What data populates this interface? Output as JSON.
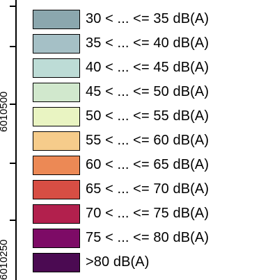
{
  "map": {
    "axis": {
      "labels": [
        "6010500",
        "6010250"
      ]
    },
    "legend": {
      "items": [
        {
          "label": "30 < ... <= 35 dB(A)",
          "color": "#8ba7ae"
        },
        {
          "label": "35 < ... <= 40 dB(A)",
          "color": "#a5c0c6"
        },
        {
          "label": "40 < ... <= 45 dB(A)",
          "color": "#bddcd6"
        },
        {
          "label": "45 < ... <= 50 dB(A)",
          "color": "#d1e8cd"
        },
        {
          "label": "50 < ... <= 55 dB(A)",
          "color": "#e9f4c2"
        },
        {
          "label": "55 < ... <= 60 dB(A)",
          "color": "#f6cc8b"
        },
        {
          "label": "60 < ... <= 65 dB(A)",
          "color": "#ec8955"
        },
        {
          "label": "65 < ... <= 70 dB(A)",
          "color": "#d74e44"
        },
        {
          "label": "70 < ... <= 75 dB(A)",
          "color": "#b2204d"
        },
        {
          "label": "75 < ... <= 80 dB(A)",
          "color": "#7d0b66"
        },
        {
          "label": ">80 dB(A)",
          "color": "#4b0a52"
        }
      ]
    }
  }
}
